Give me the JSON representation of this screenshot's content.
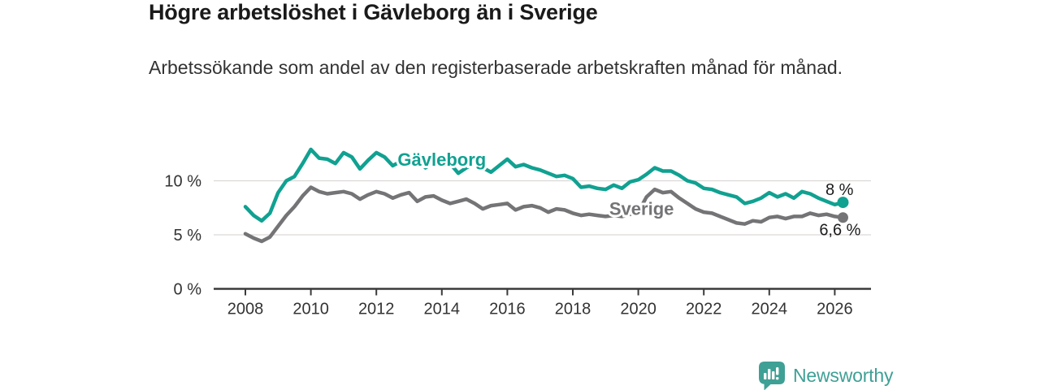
{
  "header": {
    "title": "Högre arbetslöshet i Gävleborg än i Sverige",
    "subtitle": "Arbetssökande som andel av den registerbaserade arbetskraften månad för månad."
  },
  "chart_data": {
    "type": "line",
    "title": "Högre arbetslöshet i Gävleborg än i Sverige",
    "subtitle": "Arbetssökande som andel av den registerbaserade arbetskraften månad för månad.",
    "unit": "%",
    "x_start": 2008.0,
    "x_step": 0.25,
    "x_axis": {
      "ticks": [
        2008,
        2010,
        2012,
        2014,
        2016,
        2018,
        2020,
        2022,
        2024,
        2026
      ],
      "range": [
        2007.1,
        2027.1
      ]
    },
    "y_axis": {
      "ticks": [
        0,
        5,
        10
      ],
      "tick_labels": [
        "0 %",
        "5 %",
        "10 %"
      ],
      "range": [
        0,
        14.7
      ],
      "grid": true
    },
    "legend_position": "inline-labels",
    "colors": {
      "axis": "#3a3a3a",
      "grid": "#dcd8d6",
      "tick_text": "#333333",
      "end_label_text": "#1b1b1b"
    },
    "series": [
      {
        "name": "Gävleborg",
        "color": "#10A191",
        "end_label": "8 %",
        "end_value": 8.0,
        "label_pos": {
          "x": 2014.0,
          "y": 12.0
        },
        "values": [
          7.6,
          6.8,
          6.3,
          7.0,
          8.9,
          10.0,
          10.4,
          11.6,
          12.9,
          12.1,
          12.0,
          11.6,
          12.6,
          12.2,
          11.1,
          11.9,
          12.6,
          12.2,
          11.4,
          11.8,
          12.4,
          12.0,
          11.2,
          11.7,
          12.2,
          11.6,
          10.7,
          11.2,
          11.6,
          11.2,
          10.8,
          11.4,
          12.0,
          11.3,
          11.5,
          11.2,
          11.0,
          10.7,
          10.4,
          10.5,
          10.2,
          9.4,
          9.5,
          9.3,
          9.2,
          9.6,
          9.3,
          9.9,
          10.1,
          10.6,
          11.2,
          10.9,
          10.9,
          10.5,
          10.0,
          9.8,
          9.3,
          9.2,
          8.9,
          8.7,
          8.5,
          7.9,
          8.1,
          8.4,
          8.9,
          8.5,
          8.8,
          8.4,
          9.0,
          8.8,
          8.4,
          8.1,
          7.8,
          8.0
        ]
      },
      {
        "name": "Sverige",
        "color": "#747477",
        "end_label": "6,6 %",
        "end_value": 6.6,
        "label_pos": {
          "x": 2020.1,
          "y": 7.45
        },
        "values": [
          5.1,
          4.7,
          4.4,
          4.8,
          5.8,
          6.8,
          7.6,
          8.6,
          9.4,
          9.0,
          8.8,
          8.9,
          9.0,
          8.8,
          8.3,
          8.7,
          9.0,
          8.8,
          8.4,
          8.7,
          8.9,
          8.1,
          8.5,
          8.6,
          8.2,
          7.9,
          8.1,
          8.3,
          7.9,
          7.4,
          7.7,
          7.8,
          7.9,
          7.3,
          7.6,
          7.7,
          7.5,
          7.1,
          7.4,
          7.3,
          7.0,
          6.8,
          6.9,
          6.8,
          6.7,
          6.8,
          6.7,
          6.9,
          7.1,
          8.5,
          9.2,
          8.9,
          9.0,
          8.4,
          7.9,
          7.4,
          7.1,
          7.0,
          6.7,
          6.4,
          6.1,
          6.0,
          6.3,
          6.2,
          6.6,
          6.7,
          6.5,
          6.7,
          6.7,
          7.0,
          6.8,
          6.9,
          6.7,
          6.6
        ]
      }
    ]
  },
  "footer": {
    "brand": "Newsworthy",
    "logo_color": "#3FA095"
  }
}
